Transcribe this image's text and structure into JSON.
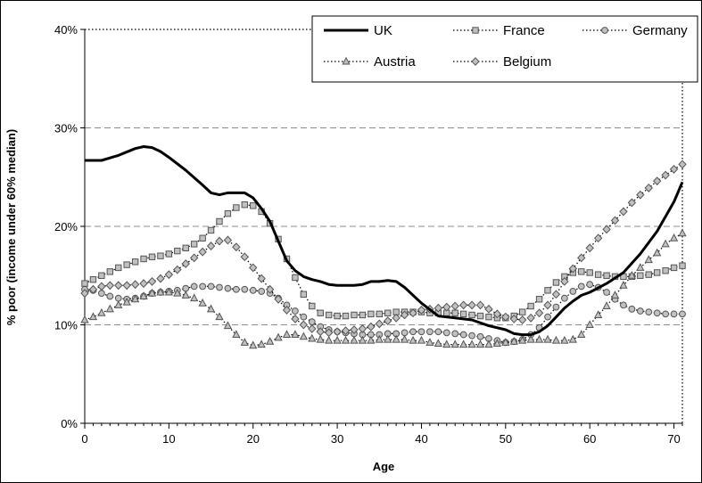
{
  "chart_data": {
    "type": "line",
    "title": "",
    "xlabel": "Age",
    "ylabel": "% poor (income under 60% median)",
    "xlim": [
      0,
      71
    ],
    "ylim": [
      0,
      40
    ],
    "x_ticks": [
      "0",
      "10",
      "20",
      "30",
      "40",
      "50",
      "60",
      "70"
    ],
    "y_ticks": [
      "0%",
      "10%",
      "20%",
      "30%",
      "40%"
    ],
    "grid": "horizontal dashed",
    "legend_position": "top-right",
    "series": [
      {
        "name": "UK",
        "style": "solid",
        "marker": "none",
        "color": "#000000",
        "x": [
          0,
          2,
          4,
          6,
          7,
          8,
          9,
          10,
          12,
          14,
          15,
          16,
          17,
          18,
          19,
          20,
          21,
          22,
          23,
          24,
          25,
          26,
          27,
          28,
          29,
          30,
          31,
          32,
          33,
          34,
          35,
          36,
          37,
          38,
          40,
          42,
          44,
          46,
          48,
          50,
          51,
          52,
          53,
          54,
          55,
          56,
          57,
          58,
          59,
          60,
          62,
          64,
          66,
          68,
          70,
          71
        ],
        "y": [
          26.7,
          26.7,
          27.2,
          27.9,
          28.1,
          28.0,
          27.6,
          27.0,
          25.7,
          24.2,
          23.4,
          23.2,
          23.4,
          23.4,
          23.4,
          22.9,
          21.8,
          20.5,
          18.5,
          16.5,
          15.5,
          14.9,
          14.6,
          14.4,
          14.1,
          14.0,
          14.0,
          14.0,
          14.1,
          14.4,
          14.4,
          14.5,
          14.4,
          13.8,
          12.2,
          10.9,
          10.7,
          10.5,
          9.9,
          9.5,
          9.1,
          9.0,
          9.0,
          9.3,
          9.9,
          10.8,
          11.7,
          12.4,
          13.0,
          13.3,
          14.2,
          15.3,
          17.2,
          19.5,
          22.5,
          24.5
        ]
      },
      {
        "name": "France",
        "style": "dotted",
        "marker": "square",
        "color": "#000000",
        "x": [
          0,
          1,
          2,
          3,
          4,
          5,
          6,
          7,
          8,
          9,
          10,
          11,
          12,
          13,
          14,
          15,
          16,
          17,
          18,
          19,
          20,
          21,
          22,
          23,
          24,
          25,
          26,
          27,
          28,
          29,
          30,
          31,
          32,
          33,
          34,
          35,
          36,
          37,
          38,
          39,
          40,
          41,
          42,
          43,
          44,
          45,
          46,
          47,
          48,
          49,
          50,
          51,
          52,
          53,
          54,
          55,
          56,
          57,
          58,
          59,
          60,
          61,
          62,
          63,
          64,
          65,
          66,
          67,
          68,
          69,
          70,
          71
        ],
        "y": [
          14.2,
          14.6,
          15.0,
          15.4,
          15.8,
          16.1,
          16.4,
          16.7,
          16.9,
          17.0,
          17.2,
          17.5,
          17.8,
          18.2,
          18.8,
          19.6,
          20.5,
          21.3,
          21.9,
          22.2,
          22.1,
          21.5,
          20.3,
          18.7,
          16.7,
          14.8,
          13.1,
          11.9,
          11.2,
          11.0,
          10.9,
          10.9,
          11.0,
          11.0,
          11.1,
          11.1,
          11.2,
          11.3,
          11.3,
          11.3,
          11.3,
          11.2,
          11.2,
          11.2,
          11.2,
          11.1,
          11.0,
          10.9,
          10.8,
          10.7,
          10.7,
          10.9,
          11.3,
          11.9,
          12.6,
          13.5,
          14.3,
          14.9,
          15.3,
          15.4,
          15.3,
          15.1,
          15.0,
          14.9,
          14.9,
          14.9,
          15.0,
          15.1,
          15.3,
          15.5,
          15.8,
          16.0
        ]
      },
      {
        "name": "Germany",
        "style": "dotted",
        "marker": "circle",
        "color": "#000000",
        "x": [
          0,
          1,
          2,
          3,
          4,
          5,
          6,
          7,
          8,
          9,
          10,
          11,
          12,
          13,
          14,
          15,
          16,
          17,
          18,
          19,
          20,
          21,
          22,
          23,
          24,
          25,
          26,
          27,
          28,
          29,
          30,
          31,
          32,
          33,
          34,
          35,
          36,
          37,
          38,
          39,
          40,
          41,
          42,
          43,
          44,
          45,
          46,
          47,
          48,
          49,
          50,
          51,
          52,
          53,
          54,
          55,
          56,
          57,
          58,
          59,
          60,
          61,
          62,
          63,
          64,
          65,
          66,
          67,
          68,
          69,
          70,
          71
        ],
        "y": [
          13.6,
          13.5,
          13.2,
          12.9,
          12.7,
          12.6,
          12.7,
          12.9,
          13.2,
          13.3,
          13.4,
          13.5,
          13.7,
          13.9,
          13.9,
          13.9,
          13.8,
          13.7,
          13.6,
          13.6,
          13.5,
          13.4,
          13.2,
          12.7,
          12.0,
          11.4,
          10.8,
          10.3,
          9.8,
          9.5,
          9.3,
          9.2,
          9.1,
          9.0,
          9.0,
          9.0,
          9.1,
          9.1,
          9.2,
          9.3,
          9.3,
          9.3,
          9.3,
          9.2,
          9.1,
          9.0,
          8.9,
          8.8,
          8.6,
          8.4,
          8.2,
          8.3,
          8.5,
          9.0,
          9.7,
          10.8,
          11.8,
          12.7,
          13.4,
          13.9,
          14.1,
          13.8,
          13.3,
          12.6,
          12.0,
          11.6,
          11.4,
          11.3,
          11.2,
          11.1,
          11.1,
          11.1
        ]
      },
      {
        "name": "Austria",
        "style": "dotted",
        "marker": "triangle",
        "color": "#000000",
        "x": [
          0,
          1,
          2,
          3,
          4,
          5,
          6,
          7,
          8,
          9,
          10,
          11,
          12,
          13,
          14,
          15,
          16,
          17,
          18,
          19,
          20,
          21,
          22,
          23,
          24,
          25,
          26,
          27,
          28,
          29,
          30,
          31,
          32,
          33,
          34,
          35,
          36,
          37,
          38,
          39,
          40,
          41,
          42,
          43,
          44,
          45,
          46,
          47,
          48,
          49,
          50,
          51,
          52,
          53,
          54,
          55,
          56,
          57,
          58,
          59,
          60,
          61,
          62,
          63,
          64,
          65,
          66,
          67,
          68,
          69,
          70,
          71
        ],
        "y": [
          10.5,
          10.8,
          11.2,
          11.6,
          12.0,
          12.3,
          12.6,
          12.9,
          13.2,
          13.3,
          13.3,
          13.2,
          13.0,
          12.7,
          12.2,
          11.6,
          10.8,
          9.9,
          9.0,
          8.2,
          7.9,
          8.0,
          8.3,
          8.7,
          9.0,
          9.0,
          8.8,
          8.6,
          8.5,
          8.4,
          8.4,
          8.4,
          8.4,
          8.4,
          8.4,
          8.5,
          8.5,
          8.5,
          8.5,
          8.4,
          8.4,
          8.2,
          8.1,
          8.0,
          8.0,
          8.0,
          8.0,
          8.0,
          8.0,
          8.1,
          8.2,
          8.3,
          8.4,
          8.5,
          8.5,
          8.5,
          8.4,
          8.4,
          8.5,
          9.0,
          10.0,
          11.0,
          11.9,
          13.0,
          14.0,
          15.0,
          15.8,
          16.6,
          17.3,
          18.2,
          18.8,
          19.3
        ]
      },
      {
        "name": "Belgium",
        "style": "dotted",
        "marker": "diamond",
        "color": "#000000",
        "x": [
          0,
          1,
          2,
          3,
          4,
          5,
          6,
          7,
          8,
          9,
          10,
          11,
          12,
          13,
          14,
          15,
          16,
          17,
          18,
          19,
          20,
          21,
          22,
          23,
          24,
          25,
          26,
          27,
          28,
          29,
          30,
          31,
          32,
          33,
          34,
          35,
          36,
          37,
          38,
          39,
          40,
          41,
          42,
          43,
          44,
          45,
          46,
          47,
          48,
          49,
          50,
          51,
          52,
          53,
          54,
          55,
          56,
          57,
          58,
          59,
          60,
          61,
          62,
          63,
          64,
          65,
          66,
          67,
          68,
          69,
          70,
          71
        ],
        "y": [
          13.2,
          13.6,
          13.9,
          14.0,
          14.0,
          14.0,
          14.1,
          14.2,
          14.4,
          14.7,
          15.1,
          15.6,
          16.2,
          16.8,
          17.4,
          18.0,
          18.5,
          18.6,
          17.9,
          16.9,
          15.8,
          14.7,
          13.6,
          12.6,
          11.5,
          10.6,
          10.0,
          9.6,
          9.3,
          9.2,
          9.3,
          9.4,
          9.5,
          9.6,
          9.8,
          10.1,
          10.4,
          10.7,
          11.0,
          11.2,
          11.5,
          11.6,
          11.7,
          11.8,
          11.9,
          12.0,
          12.0,
          12.0,
          11.6,
          11.1,
          10.8,
          10.6,
          10.5,
          10.7,
          11.2,
          12.0,
          13.1,
          14.4,
          15.7,
          16.8,
          17.8,
          18.8,
          19.7,
          20.6,
          21.5,
          22.4,
          23.2,
          23.9,
          24.6,
          25.2,
          25.8,
          26.3
        ]
      }
    ]
  }
}
